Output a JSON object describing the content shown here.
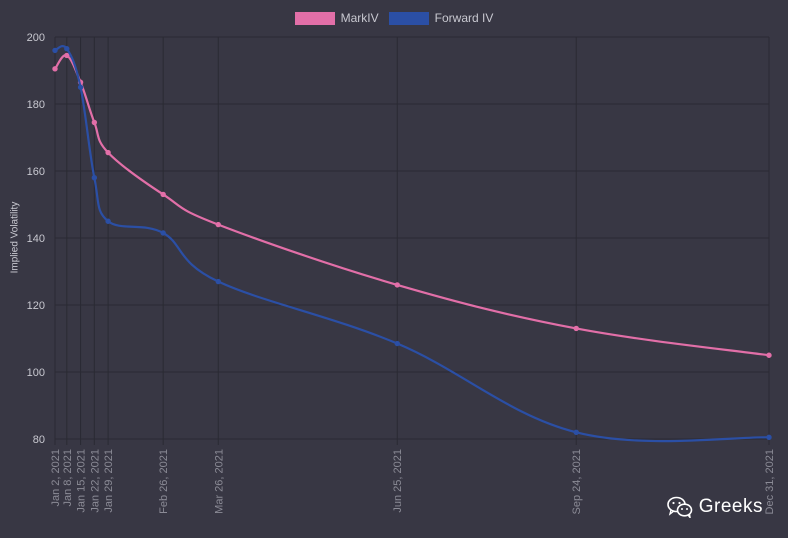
{
  "chart_data": {
    "type": "line",
    "xlabel": "",
    "ylabel": "Implied Volatility",
    "ylim": [
      80,
      200
    ],
    "yticks": [
      80,
      100,
      120,
      140,
      160,
      180,
      200
    ],
    "grid": true,
    "legend_position": "top-center",
    "x": [
      "Jan 2, 2021",
      "Jan 8, 2021",
      "Jan 15, 2021",
      "Jan 22, 2021",
      "Jan 29, 2021",
      "Feb 26, 2021",
      "Mar 26, 2021",
      "Jun 25, 2021",
      "Sep 24, 2021",
      "Dec 31, 2021"
    ],
    "x_tick_labels": [
      "Jan 2, 2021",
      "Jan 8, 2021",
      "Jan 15, 2021",
      "Jan 22, 2021",
      "Jan 29, 2021",
      "Feb 26, 2021",
      "Mar 26, 2021",
      "Jun 25, 2021",
      "Sep 24, 2021",
      "Dec 31, 2021"
    ],
    "series": [
      {
        "name": "MarkIV",
        "color": "#e26fa8",
        "values": [
          190.5,
          194.5,
          186.5,
          174.5,
          165.5,
          153,
          144,
          126,
          113,
          105
        ]
      },
      {
        "name": "Forward IV",
        "color": "#2b4fa5",
        "values": [
          196,
          196.5,
          185,
          158,
          145,
          141.5,
          127,
          108.5,
          82,
          80.5
        ]
      }
    ]
  },
  "watermark": {
    "text": "Greeks",
    "icon": "wechat-icon"
  }
}
